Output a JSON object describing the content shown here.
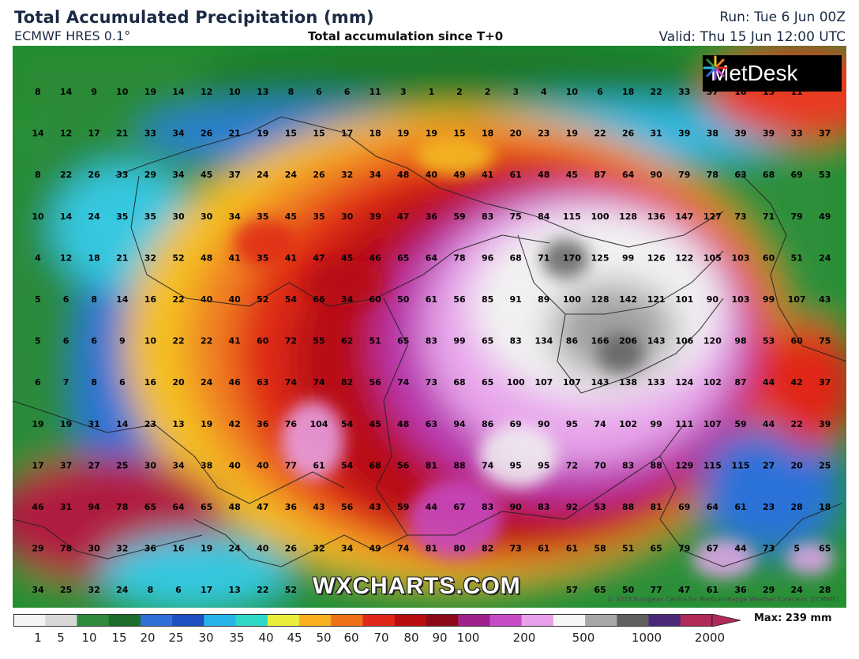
{
  "header": {
    "title": "Total Accumulated Precipitation (mm)",
    "model": "ECMWF HRES 0.1°",
    "subtitle": "Total accumulation since T+0",
    "run": "Run: Tue 6 Jun 00Z",
    "valid": "Valid: Thu 15 Jun 12:00 UTC"
  },
  "logo": {
    "text": "MetDesk",
    "icon": "metdesk-burst-icon"
  },
  "watermark": "WXCHARTS.COM",
  "copyright": "© 2023 European Centre for Medium-Range Weather Forecasts (ECMWF)",
  "legend": {
    "max_label": "Max: 239 mm",
    "ticks": [
      "1",
      "5",
      "10",
      "15",
      "20",
      "25",
      "30",
      "35",
      "40",
      "45",
      "50",
      "60",
      "70",
      "80",
      "90",
      "100",
      "200",
      "500",
      "1000",
      "2000"
    ],
    "colors": [
      "#f4f4f4",
      "#d8d8d8",
      "#2e8b3a",
      "#1d6e2a",
      "#2f6fd6",
      "#1f4fc0",
      "#28b4e8",
      "#30d8c8",
      "#e8ee3a",
      "#f8b020",
      "#f07018",
      "#e02818",
      "#b80e12",
      "#8c0a1a",
      "#a0208c",
      "#c84cc8",
      "#e8a0ea",
      "#f6f6f6",
      "#a8a8a8",
      "#606060",
      "#4a2a78",
      "#b02a5a"
    ]
  },
  "grid_values": [
    [
      "8",
      "14",
      "9",
      "10",
      "19",
      "14",
      "12",
      "10",
      "13",
      "8",
      "6",
      "6",
      "11",
      "3",
      "1",
      "2",
      "2",
      "3",
      "4",
      "10",
      "6",
      "18",
      "22",
      "33",
      "37",
      "18",
      "13",
      "11"
    ],
    [
      "14",
      "12",
      "17",
      "21",
      "33",
      "34",
      "26",
      "21",
      "19",
      "15",
      "15",
      "17",
      "18",
      "19",
      "19",
      "15",
      "18",
      "20",
      "23",
      "19",
      "22",
      "26",
      "31",
      "39",
      "38",
      "39",
      "39",
      "33",
      "37"
    ],
    [
      "8",
      "22",
      "26",
      "33",
      "29",
      "34",
      "45",
      "37",
      "24",
      "24",
      "26",
      "32",
      "34",
      "48",
      "40",
      "49",
      "41",
      "61",
      "48",
      "45",
      "87",
      "64",
      "90",
      "79",
      "78",
      "63",
      "68",
      "69",
      "53"
    ],
    [
      "10",
      "14",
      "24",
      "35",
      "35",
      "30",
      "30",
      "34",
      "35",
      "45",
      "35",
      "30",
      "39",
      "47",
      "36",
      "59",
      "83",
      "75",
      "84",
      "115",
      "100",
      "128",
      "136",
      "147",
      "127",
      "73",
      "71",
      "79",
      "49"
    ],
    [
      "4",
      "12",
      "18",
      "21",
      "32",
      "52",
      "48",
      "41",
      "35",
      "41",
      "47",
      "45",
      "46",
      "65",
      "64",
      "78",
      "96",
      "68",
      "71",
      "170",
      "125",
      "99",
      "126",
      "122",
      "105",
      "103",
      "60",
      "51",
      "24"
    ],
    [
      "5",
      "6",
      "8",
      "14",
      "16",
      "22",
      "40",
      "40",
      "52",
      "54",
      "66",
      "34",
      "60",
      "50",
      "61",
      "56",
      "85",
      "91",
      "89",
      "100",
      "128",
      "142",
      "121",
      "101",
      "90",
      "103",
      "99",
      "107",
      "43"
    ],
    [
      "5",
      "6",
      "6",
      "9",
      "10",
      "22",
      "22",
      "41",
      "60",
      "72",
      "55",
      "62",
      "51",
      "65",
      "83",
      "99",
      "65",
      "83",
      "134",
      "86",
      "166",
      "206",
      "143",
      "106",
      "120",
      "98",
      "53",
      "60",
      "75"
    ],
    [
      "6",
      "7",
      "8",
      "6",
      "16",
      "20",
      "24",
      "46",
      "63",
      "74",
      "74",
      "82",
      "56",
      "74",
      "73",
      "68",
      "65",
      "100",
      "107",
      "107",
      "143",
      "138",
      "133",
      "124",
      "102",
      "87",
      "44",
      "42",
      "37"
    ],
    [
      "19",
      "19",
      "31",
      "14",
      "23",
      "13",
      "19",
      "42",
      "36",
      "76",
      "104",
      "54",
      "45",
      "48",
      "63",
      "94",
      "86",
      "69",
      "90",
      "95",
      "74",
      "102",
      "99",
      "111",
      "107",
      "59",
      "44",
      "22",
      "39"
    ],
    [
      "17",
      "37",
      "27",
      "25",
      "30",
      "34",
      "38",
      "40",
      "40",
      "77",
      "61",
      "54",
      "68",
      "56",
      "81",
      "88",
      "74",
      "95",
      "95",
      "72",
      "70",
      "83",
      "88",
      "129",
      "115",
      "115",
      "27",
      "20",
      "25"
    ],
    [
      "46",
      "31",
      "94",
      "78",
      "65",
      "64",
      "65",
      "48",
      "47",
      "36",
      "43",
      "56",
      "43",
      "59",
      "44",
      "67",
      "83",
      "90",
      "83",
      "92",
      "53",
      "88",
      "81",
      "69",
      "64",
      "61",
      "23",
      "28",
      "18"
    ],
    [
      "29",
      "78",
      "30",
      "32",
      "36",
      "16",
      "19",
      "24",
      "40",
      "26",
      "32",
      "34",
      "49",
      "74",
      "81",
      "80",
      "82",
      "73",
      "61",
      "61",
      "58",
      "51",
      "65",
      "79",
      "67",
      "44",
      "73",
      "5",
      "65"
    ],
    [
      "34",
      "25",
      "32",
      "24",
      "8",
      "6",
      "17",
      "13",
      "22",
      "52",
      "",
      "",
      "",
      "",
      "",
      "",
      "",
      "",
      "",
      "57",
      "65",
      "50",
      "77",
      "47",
      "61",
      "36",
      "29",
      "24",
      "28"
    ]
  ]
}
